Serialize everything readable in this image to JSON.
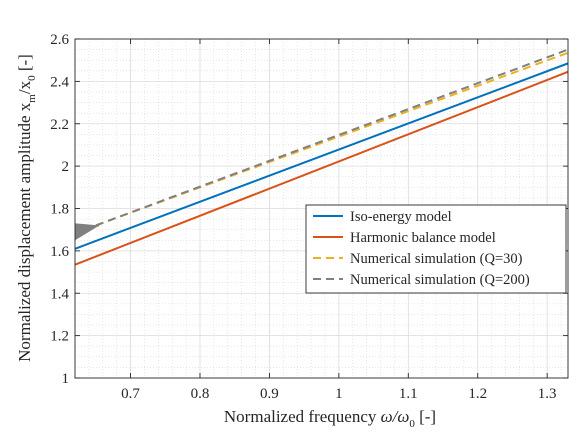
{
  "chart_data": {
    "type": "line",
    "title": "",
    "xlabel": "Normalized frequency",
    "ylabel": "Normalized displacement amplitude",
    "xlabel_math": {
      "symbol": "ω/ω",
      "subscript": "0",
      "unit": "[-]"
    },
    "ylabel_math": {
      "symbol": "x",
      "subscript": "m",
      "mid": "/x",
      "subscript2": "0",
      "unit": "[-]"
    },
    "xlim": [
      0.62,
      1.33
    ],
    "ylim": [
      1.0,
      2.6
    ],
    "xticks": [
      0.7,
      0.8,
      0.9,
      1,
      1.1,
      1.2,
      1.3
    ],
    "xtick_labels": [
      "0.7",
      "0.8",
      "0.9",
      "1",
      "1.1",
      "1.2",
      "1.3"
    ],
    "yticks": [
      1,
      1.2,
      1.4,
      1.6,
      1.8,
      2,
      2.2,
      2.4,
      2.6
    ],
    "ytick_labels": [
      "1",
      "1.2",
      "1.4",
      "1.6",
      "1.8",
      "2",
      "2.2",
      "2.4",
      "2.6"
    ],
    "grid": true,
    "minor_grid": true,
    "legend_position": "right",
    "series": [
      {
        "name": "Iso-energy model",
        "color": "#0072BD",
        "style": "solid",
        "x": [
          0.62,
          1.33
        ],
        "y": [
          1.61,
          2.485
        ]
      },
      {
        "name": "Harmonic balance model",
        "color": "#D95319",
        "style": "solid",
        "x": [
          0.62,
          1.33
        ],
        "y": [
          1.535,
          2.445
        ]
      },
      {
        "name": "Numerical simulation (Q=30)",
        "color": "#EDB120",
        "style": "dashed",
        "x": [
          0.65,
          1.33
        ],
        "y": [
          1.72,
          2.535
        ]
      },
      {
        "name": "Numerical simulation (Q=200)",
        "color": "#808080",
        "style": "dashed",
        "x": [
          0.65,
          1.33
        ],
        "y": [
          1.72,
          2.55
        ]
      }
    ],
    "transient": {
      "color": "#808080",
      "x_start": 0.62,
      "x_end": 0.655,
      "center_start": 1.69,
      "center_end": 1.72,
      "amplitude": 0.04
    }
  }
}
